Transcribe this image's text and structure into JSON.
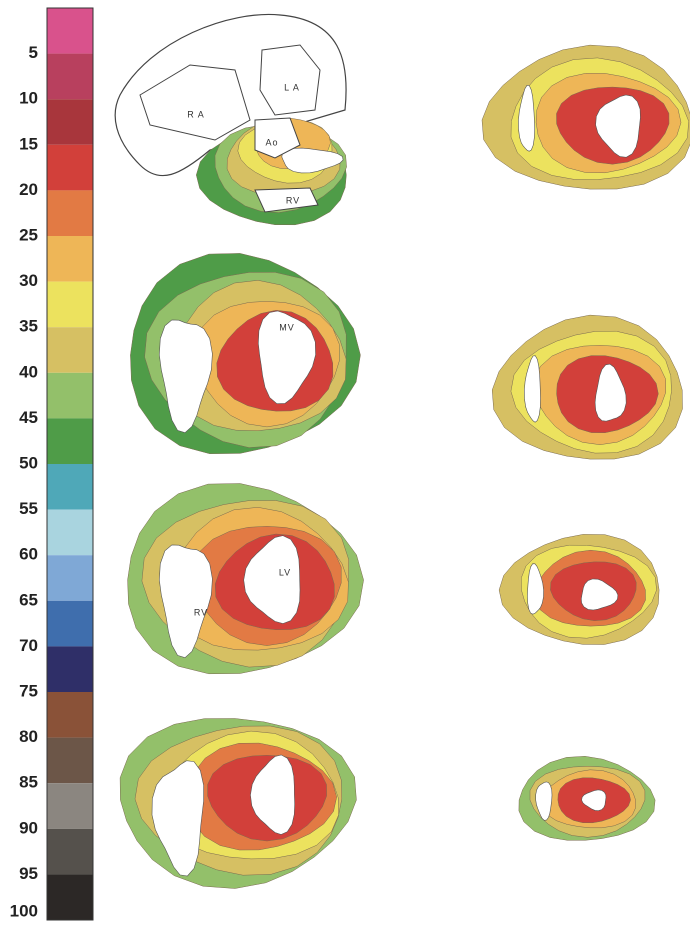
{
  "scale": {
    "labels": [
      "5",
      "10",
      "15",
      "20",
      "25",
      "30",
      "35",
      "40",
      "45",
      "50",
      "55",
      "60",
      "65",
      "70",
      "75",
      "80",
      "85",
      "90",
      "95",
      "100"
    ],
    "colors": [
      "#d9528c",
      "#b8405e",
      "#a8363c",
      "#d2403a",
      "#e27a44",
      "#eeb657",
      "#ece25e",
      "#d6c063",
      "#93c06a",
      "#4f9c48",
      "#4fa8b8",
      "#a9d4df",
      "#7fa8d6",
      "#3f6ead",
      "#2f2f68",
      "#8a5238",
      "#6c5648",
      "#8b8680",
      "#55514c",
      "#2c2826"
    ]
  },
  "figure": {
    "labels": [
      "R A",
      "L A",
      "Ao",
      "RV",
      "MV",
      "LV",
      "RV"
    ]
  }
}
